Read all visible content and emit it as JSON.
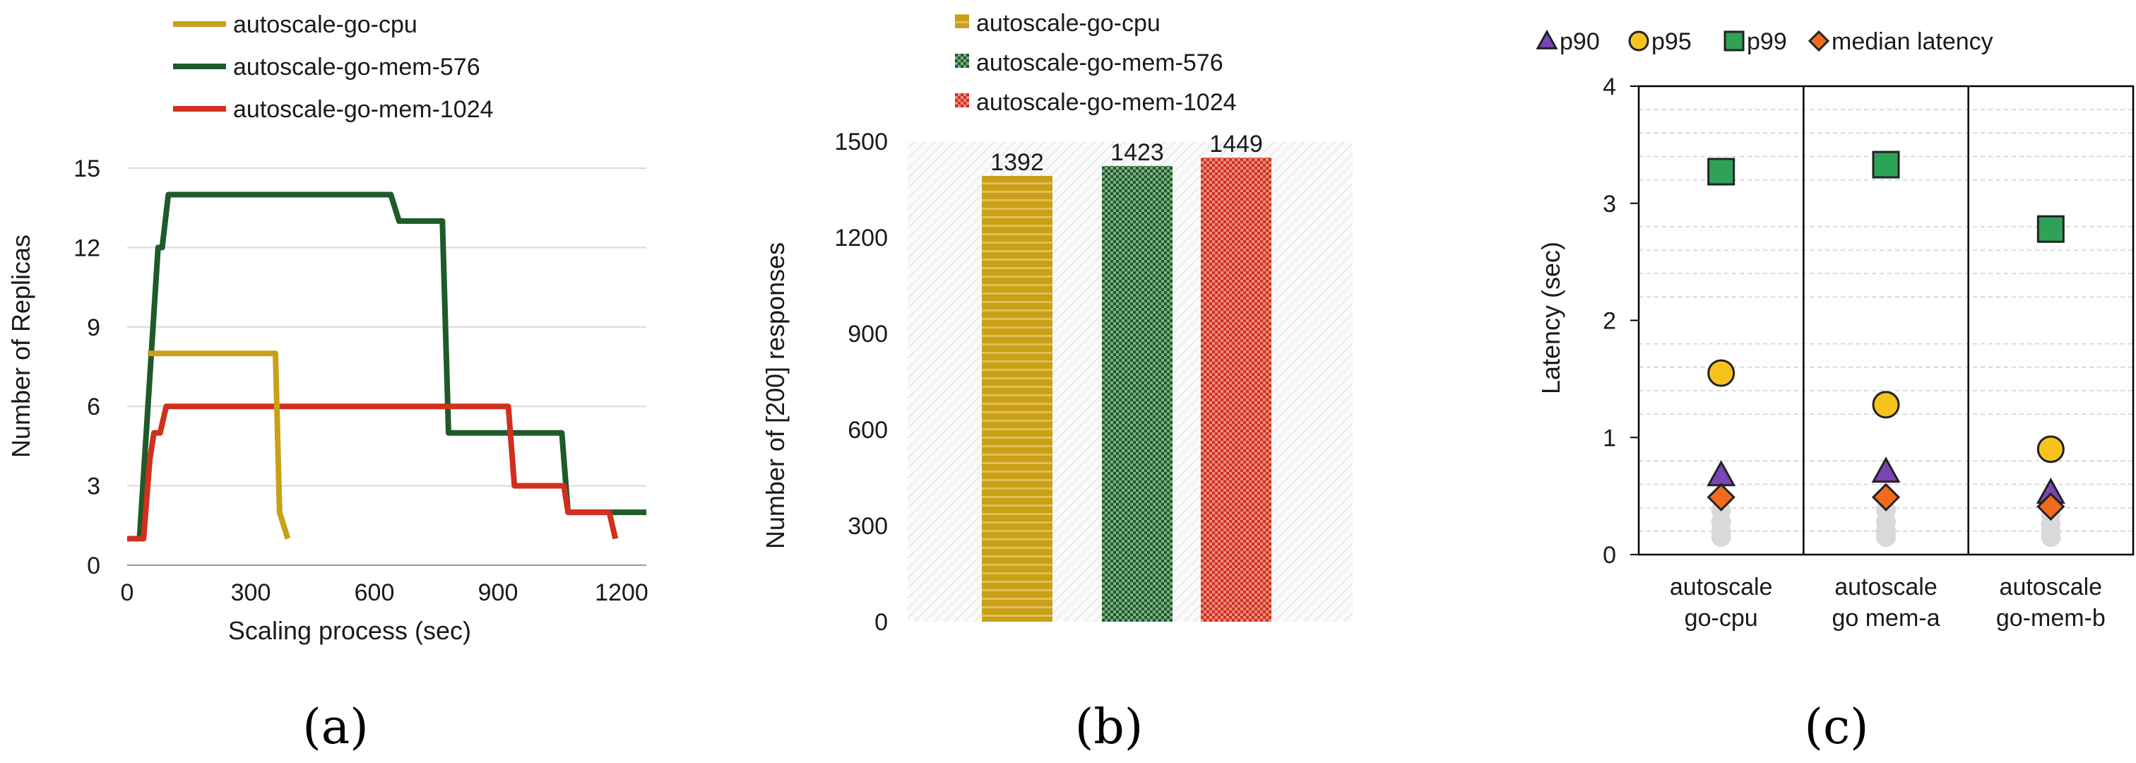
{
  "colors": {
    "cpu": "#c9a018",
    "mem576": "#1f5a2a",
    "mem1024": "#d0301e",
    "p90": "#7a45b5",
    "p95": "#f7c21c",
    "p99": "#2ea357",
    "median": "#f26a1b",
    "grey": "#d9d9d9"
  },
  "panel_labels": [
    "(a)",
    "(b)",
    "(c)"
  ],
  "chart_data": [
    {
      "type": "line",
      "xlabel": "Scaling process (sec)",
      "ylabel": "Number of Replicas",
      "xlim": [
        0,
        1260
      ],
      "ylim": [
        0,
        15
      ],
      "xticks": [
        0,
        300,
        600,
        900,
        1200
      ],
      "yticks": [
        0,
        3,
        6,
        9,
        12,
        15
      ],
      "grid": "horizontal",
      "legend": "top",
      "series": [
        {
          "name": "autoscale-go-cpu",
          "color_key": "cpu",
          "points": [
            [
              50,
              8
            ],
            [
              360,
              8
            ],
            [
              370,
              2
            ],
            [
              390,
              1
            ]
          ]
        },
        {
          "name": "autoscale-go-mem-576",
          "color_key": "mem576",
          "points": [
            [
              0,
              1
            ],
            [
              30,
              1
            ],
            [
              75,
              12
            ],
            [
              85,
              12
            ],
            [
              100,
              14
            ],
            [
              640,
              14
            ],
            [
              660,
              13
            ],
            [
              765,
              13
            ],
            [
              780,
              5
            ],
            [
              1055,
              5
            ],
            [
              1070,
              2
            ],
            [
              1260,
              2
            ]
          ]
        },
        {
          "name": "autoscale-go-mem-1024",
          "color_key": "mem1024",
          "points": [
            [
              0,
              1
            ],
            [
              40,
              1
            ],
            [
              55,
              4
            ],
            [
              65,
              5
            ],
            [
              80,
              5
            ],
            [
              95,
              6
            ],
            [
              925,
              6
            ],
            [
              940,
              3
            ],
            [
              1060,
              3
            ],
            [
              1070,
              2
            ],
            [
              1170,
              2
            ],
            [
              1185,
              1
            ]
          ]
        }
      ]
    },
    {
      "type": "bar",
      "ylabel": "Number of [200] responses",
      "ylim": [
        0,
        1500
      ],
      "yticks": [
        0,
        300,
        600,
        900,
        1200,
        1500
      ],
      "legend": "top",
      "categories": [
        "autoscale-go-cpu",
        "autoscale-go-mem-576",
        "autoscale-go-mem-1024"
      ],
      "values": [
        1392,
        1423,
        1449
      ],
      "color_keys": [
        "cpu",
        "mem576",
        "mem1024"
      ]
    },
    {
      "type": "scatter",
      "ylabel": "Latency (sec)",
      "ylim": [
        0,
        4
      ],
      "yticks": [
        0,
        1,
        2,
        3,
        4
      ],
      "legend": "top",
      "categories": [
        [
          "autoscale",
          "go-cpu"
        ],
        [
          "autoscale",
          "go mem-a"
        ],
        [
          "autoscale",
          "go-mem-b"
        ]
      ],
      "series": [
        {
          "name": "p90",
          "marker": "triangle",
          "color_key": "p90",
          "values": [
            0.68,
            0.71,
            0.53
          ]
        },
        {
          "name": "p95",
          "marker": "circle",
          "color_key": "p95",
          "values": [
            1.55,
            1.28,
            0.9
          ]
        },
        {
          "name": "p99",
          "marker": "square",
          "color_key": "p99",
          "values": [
            3.27,
            3.33,
            2.78
          ]
        },
        {
          "name": "median latency",
          "marker": "diamond",
          "color_key": "median",
          "values": [
            0.49,
            0.49,
            0.41
          ]
        }
      ],
      "unlabeled_points": [
        [
          0.38,
          0.28,
          0.2,
          0.15
        ],
        [
          0.38,
          0.28,
          0.2,
          0.15
        ],
        [
          0.34,
          0.26,
          0.19,
          0.15
        ]
      ]
    }
  ]
}
